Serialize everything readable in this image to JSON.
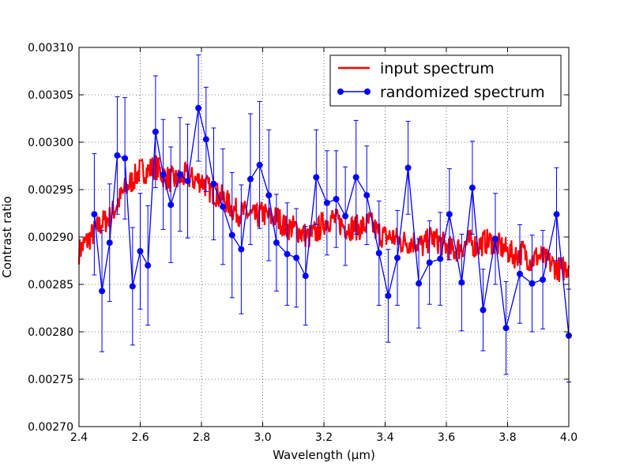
{
  "chart_data": {
    "type": "line",
    "xlabel": "Wavelength (μm)",
    "ylabel": "Contrast ratio",
    "xlim": [
      2.4,
      4.0
    ],
    "ylim": [
      0.0027,
      0.0031
    ],
    "x_ticks": [
      "2.4",
      "2.6",
      "2.8",
      "3.0",
      "3.2",
      "3.4",
      "3.6",
      "3.8",
      "4.0"
    ],
    "y_ticks": [
      "0.00270",
      "0.00275",
      "0.00280",
      "0.00285",
      "0.00290",
      "0.00295",
      "0.00300",
      "0.00305",
      "0.00310"
    ],
    "grid": true,
    "legend_position": "top-right",
    "colors": {
      "input": "#ff0000",
      "randomized": "#0000ff"
    },
    "series": [
      {
        "name": "input spectrum",
        "style": "line",
        "x": [
          2.4,
          2.425,
          2.45,
          2.475,
          2.5,
          2.525,
          2.55,
          2.575,
          2.6,
          2.625,
          2.65,
          2.675,
          2.7,
          2.725,
          2.75,
          2.775,
          2.8,
          2.825,
          2.85,
          2.875,
          2.9,
          2.925,
          2.95,
          2.975,
          3.0,
          3.025,
          3.05,
          3.075,
          3.1,
          3.125,
          3.15,
          3.175,
          3.2,
          3.225,
          3.25,
          3.275,
          3.3,
          3.325,
          3.35,
          3.375,
          3.4,
          3.425,
          3.45,
          3.475,
          3.5,
          3.525,
          3.55,
          3.575,
          3.6,
          3.625,
          3.65,
          3.675,
          3.7,
          3.725,
          3.75,
          3.775,
          3.8,
          3.825,
          3.85,
          3.875,
          3.9,
          3.925,
          3.95,
          3.975,
          4.0
        ],
        "y": [
          0.002885,
          0.002895,
          0.002905,
          0.002915,
          0.00292,
          0.002935,
          0.00295,
          0.00296,
          0.00297,
          0.00297,
          0.002975,
          0.002965,
          0.00296,
          0.00296,
          0.002965,
          0.00296,
          0.00296,
          0.00295,
          0.002945,
          0.00294,
          0.00293,
          0.002925,
          0.002925,
          0.00292,
          0.002925,
          0.00292,
          0.00292,
          0.00291,
          0.00291,
          0.002905,
          0.0029,
          0.002905,
          0.002915,
          0.00292,
          0.002915,
          0.00291,
          0.00291,
          0.00291,
          0.002915,
          0.002905,
          0.0029,
          0.0029,
          0.002895,
          0.002895,
          0.002895,
          0.00289,
          0.0029,
          0.002895,
          0.00289,
          0.002885,
          0.00289,
          0.002895,
          0.00289,
          0.002895,
          0.002895,
          0.00289,
          0.002885,
          0.00288,
          0.002885,
          0.002875,
          0.00288,
          0.002875,
          0.00287,
          0.002865,
          0.00287
        ]
      },
      {
        "name": "randomized spectrum",
        "style": "errorbar",
        "x": [
          2.45,
          2.475,
          2.5,
          2.525,
          2.55,
          2.575,
          2.6,
          2.625,
          2.65,
          2.675,
          2.7,
          2.73,
          2.755,
          2.79,
          2.815,
          2.84,
          2.87,
          2.9,
          2.93,
          2.96,
          2.99,
          3.02,
          3.045,
          3.08,
          3.11,
          3.14,
          3.175,
          3.21,
          3.24,
          3.27,
          3.305,
          3.34,
          3.38,
          3.41,
          3.44,
          3.475,
          3.51,
          3.545,
          3.58,
          3.61,
          3.65,
          3.685,
          3.72,
          3.76,
          3.795,
          3.84,
          3.88,
          3.915,
          3.96,
          4.0
        ],
        "y": [
          0.002924,
          0.002843,
          0.002894,
          0.002986,
          0.002983,
          0.002848,
          0.002885,
          0.00287,
          0.003011,
          0.002966,
          0.002934,
          0.002966,
          0.002959,
          0.003036,
          0.003003,
          0.002956,
          0.002932,
          0.002902,
          0.002887,
          0.002961,
          0.002976,
          0.002944,
          0.002894,
          0.002882,
          0.002878,
          0.002859,
          0.002963,
          0.002936,
          0.00294,
          0.002922,
          0.002963,
          0.002944,
          0.002883,
          0.002838,
          0.002878,
          0.002973,
          0.002851,
          0.002873,
          0.002877,
          0.002924,
          0.002852,
          0.002952,
          0.002823,
          0.002898,
          0.002804,
          0.002861,
          0.002851,
          0.002855,
          0.002924,
          0.002796
        ],
        "err": [
          6.4e-05,
          6.4e-05,
          6.2e-05,
          6.2e-05,
          6.4e-05,
          6.2e-05,
          6.1e-05,
          6.3e-05,
          5.9e-05,
          5.8e-05,
          6.1e-05,
          6e-05,
          6e-05,
          5.6e-05,
          5.5e-05,
          5.9e-05,
          6.1e-05,
          6.6e-05,
          6.8e-05,
          6.9e-05,
          6.7e-05,
          6.9e-05,
          5.1e-05,
          5.4e-05,
          5.2e-05,
          5.2e-05,
          5e-05,
          5.5e-05,
          5.1e-05,
          5.2e-05,
          6e-05,
          5.2e-05,
          5.5e-05,
          4.9e-05,
          5e-05,
          4.9e-05,
          4.7e-05,
          4.4e-05,
          4.9e-05,
          4.8e-05,
          5.1e-05,
          4.9e-05,
          4.3e-05,
          4.8e-05,
          4.9e-05,
          5.2e-05,
          5.1e-05,
          5.2e-05,
          4.9e-05,
          4.9e-05
        ]
      }
    ]
  }
}
